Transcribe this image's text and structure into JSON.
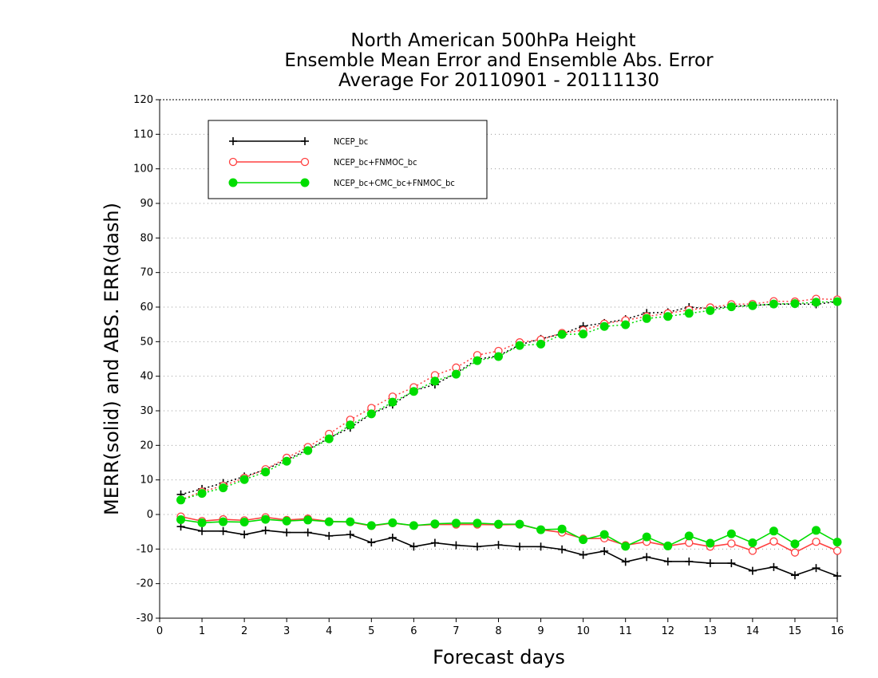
{
  "chart_data": {
    "type": "line",
    "title_lines": [
      "North American 500hPa Height",
      "Ensemble Mean Error and Ensemble Abs. Error",
      "Average For 20110901 - 20111130"
    ],
    "xlabel": "Forecast days",
    "ylabel": "MERR(solid) and ABS. ERR(dash)",
    "xlim": [
      0,
      16
    ],
    "ylim": [
      -30,
      120
    ],
    "x_ticks": [
      0,
      1,
      2,
      3,
      4,
      5,
      6,
      7,
      8,
      9,
      10,
      11,
      12,
      13,
      14,
      15,
      16
    ],
    "y_ticks": [
      -30,
      -20,
      -10,
      0,
      10,
      20,
      30,
      40,
      50,
      60,
      70,
      80,
      90,
      100,
      110,
      120
    ],
    "grid": "horizontal dotted",
    "legend_position": "top-left",
    "x": [
      0.5,
      1,
      1.5,
      2,
      2.5,
      3,
      3.5,
      4,
      4.5,
      5,
      5.5,
      6,
      6.5,
      7,
      7.5,
      8,
      8.5,
      9,
      9.5,
      10,
      10.5,
      11,
      11.5,
      12,
      12.5,
      13,
      13.5,
      14,
      14.5,
      15,
      15.5,
      16
    ],
    "series": [
      {
        "name": "NCEP_bc",
        "color": "#000000",
        "marker": "plus",
        "mean_error": [
          -3.5,
          -4.8,
          -4.8,
          -5.8,
          -4.6,
          -5.2,
          -5.2,
          -6.2,
          -5.8,
          -8.1,
          -6.7,
          -9.3,
          -8.2,
          -8.9,
          -9.3,
          -8.8,
          -9.3,
          -9.3,
          -10.1,
          -11.7,
          -10.6,
          -13.7,
          -12.3,
          -13.6,
          -13.6,
          -14.1,
          -14.1,
          -16.3,
          -15.2,
          -17.6,
          -15.5,
          -17.8
        ],
        "abs_error": [
          5.8,
          7.4,
          9.1,
          11.0,
          13.0,
          15.8,
          18.8,
          22.1,
          25.1,
          29.1,
          31.8,
          35.8,
          37.6,
          40.9,
          44.9,
          45.9,
          49.1,
          50.8,
          52.3,
          54.5,
          55.4,
          56.5,
          58.3,
          58.5,
          60.0,
          59.6,
          60.2,
          60.5,
          60.8,
          60.9,
          60.8,
          61.6
        ]
      },
      {
        "name": "NCEP_bc+FNMOC_bc",
        "color": "#ff4040",
        "marker": "open-circle",
        "mean_error": [
          -0.6,
          -1.9,
          -1.4,
          -1.7,
          -0.8,
          -1.6,
          -1.2,
          -2.0,
          -2.2,
          -3.3,
          -2.5,
          -3.2,
          -2.9,
          -2.9,
          -2.9,
          -3.0,
          -2.9,
          -4.4,
          -5.2,
          -7.0,
          -6.9,
          -8.9,
          -7.9,
          -9.1,
          -8.2,
          -9.3,
          -8.4,
          -10.5,
          -7.8,
          -11.0,
          -7.9,
          -10.5
        ],
        "abs_error": [
          4.3,
          6.6,
          8.3,
          10.6,
          13.1,
          16.4,
          19.5,
          23.3,
          27.4,
          30.8,
          34.1,
          36.8,
          40.3,
          42.5,
          46.1,
          47.3,
          49.8,
          50.6,
          52.5,
          53.3,
          55.2,
          56.2,
          57.3,
          58.2,
          59.2,
          59.9,
          60.8,
          60.9,
          61.7,
          61.6,
          62.4,
          62.2
        ]
      },
      {
        "name": "NCEP_bc+CMC_bc+FNMOC_bc",
        "color": "#00dd00",
        "marker": "filled-circle",
        "mean_error": [
          -1.5,
          -2.4,
          -2.1,
          -2.2,
          -1.4,
          -1.9,
          -1.6,
          -2.1,
          -2.1,
          -3.2,
          -2.4,
          -3.2,
          -2.7,
          -2.5,
          -2.5,
          -2.8,
          -2.8,
          -4.4,
          -4.2,
          -7.3,
          -5.8,
          -9.2,
          -6.5,
          -9.1,
          -6.2,
          -8.3,
          -5.6,
          -8.2,
          -4.8,
          -8.5,
          -4.6,
          -8.0
        ],
        "abs_error": [
          4.2,
          6.1,
          7.7,
          10.1,
          12.3,
          15.4,
          18.5,
          21.9,
          25.9,
          29.1,
          32.5,
          35.6,
          38.6,
          40.6,
          44.5,
          45.7,
          48.9,
          49.3,
          52.1,
          52.2,
          54.4,
          54.9,
          56.7,
          57.3,
          58.2,
          59.0,
          60.1,
          60.4,
          60.9,
          61.0,
          61.4,
          61.6
        ]
      }
    ]
  }
}
